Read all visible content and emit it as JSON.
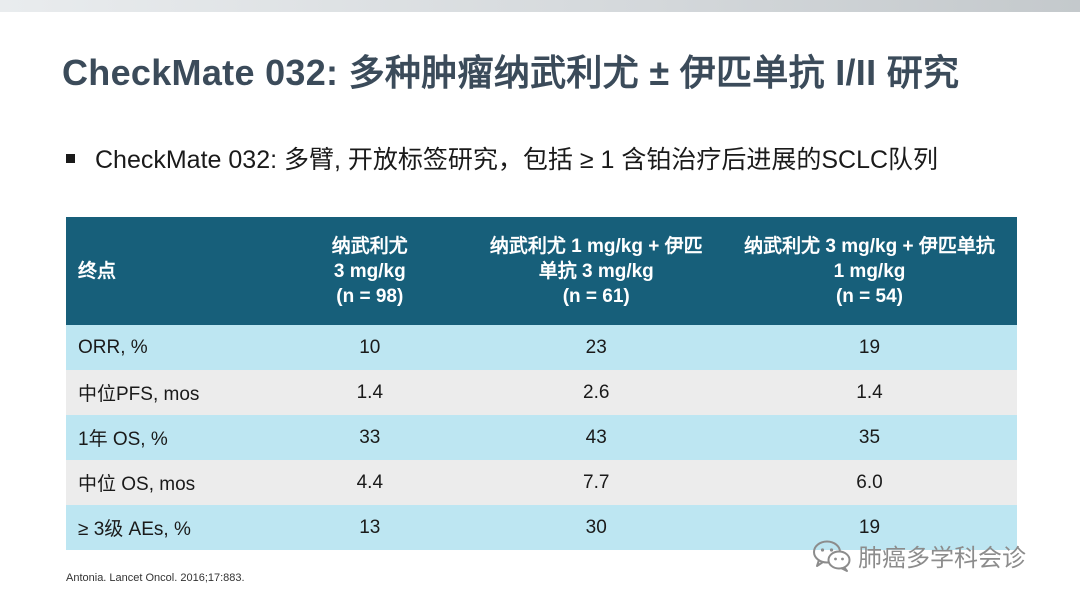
{
  "title": "CheckMate 032: 多种肿瘤纳武利尤 ± 伊匹单抗 I/II 研究",
  "bullet": "CheckMate 032: 多臂, 开放标签研究，包括 ≥ 1 含铂治疗后进展的SCLC队列",
  "table": {
    "headers": [
      [
        "终点"
      ],
      [
        "纳武利尤",
        "3 mg/kg",
        "(n = 98)"
      ],
      [
        "纳武利尤 1 mg/kg + 伊匹",
        "单抗 3 mg/kg",
        "(n = 61)"
      ],
      [
        "纳武利尤 3 mg/kg + 伊匹单抗",
        "1 mg/kg",
        "(n = 54)"
      ]
    ],
    "rows": [
      [
        "ORR, %",
        "10",
        "23",
        "19"
      ],
      [
        "中位PFS, mos",
        "1.4",
        "2.6",
        "1.4"
      ],
      [
        "1年 OS, %",
        "33",
        "43",
        "35"
      ],
      [
        "中位 OS, mos",
        "4.4",
        "7.7",
        "6.0"
      ],
      [
        "≥ 3级 AEs, %",
        "13",
        "30",
        "19"
      ]
    ]
  },
  "citation": "Antonia. Lancet Oncol. 2016;17:883.",
  "watermark": {
    "text": "肺癌多学科会诊",
    "icon": "wechat-icon"
  },
  "colors": {
    "title": "#3b4b5a",
    "header_bg": "#175f7a",
    "row_alt_1": "#bde6f2",
    "row_alt_2": "#ececec"
  }
}
